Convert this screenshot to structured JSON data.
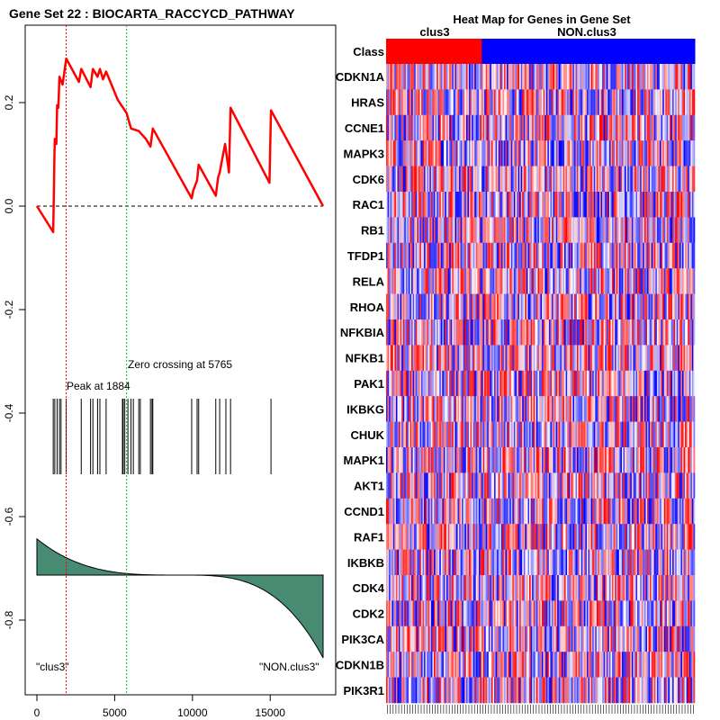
{
  "chart_data": [
    {
      "type": "line",
      "title": "Gene Set  22 : BIOCARTA_RACCYCD_PATHWAY",
      "xlim": [
        0,
        18400
      ],
      "ylim": [
        -0.95,
        0.32
      ],
      "x_ticks": [
        {
          "value": 0,
          "label": "0"
        },
        {
          "value": 5000,
          "label": "5000"
        },
        {
          "value": 10000,
          "label": "10000"
        },
        {
          "value": 15000,
          "label": "15000"
        }
      ],
      "y_ticks": [
        {
          "value": 0.2,
          "label": "0.2"
        },
        {
          "value": 0.0,
          "label": "0.0"
        },
        {
          "value": -0.2,
          "label": "-0.2"
        },
        {
          "value": -0.4,
          "label": "-0.4"
        },
        {
          "value": -0.6,
          "label": "-0.6"
        },
        {
          "value": -0.8,
          "label": "-0.8"
        }
      ],
      "series": [
        {
          "name": "running enrichment score",
          "color": "#ff0000",
          "points": [
            [
              0,
              0.0
            ],
            [
              1050,
              -0.05
            ],
            [
              1100,
              0.04
            ],
            [
              1120,
              0.09
            ],
            [
              1150,
              0.13
            ],
            [
              1250,
              0.12
            ],
            [
              1300,
              0.195
            ],
            [
              1380,
              0.19
            ],
            [
              1450,
              0.25
            ],
            [
              1650,
              0.235
            ],
            [
              1884,
              0.285
            ],
            [
              2700,
              0.24
            ],
            [
              2850,
              0.265
            ],
            [
              3450,
              0.23
            ],
            [
              3600,
              0.265
            ],
            [
              3900,
              0.25
            ],
            [
              4050,
              0.265
            ],
            [
              4250,
              0.245
            ],
            [
              4450,
              0.26
            ],
            [
              5200,
              0.205
            ],
            [
              5765,
              0.18
            ],
            [
              6050,
              0.15
            ],
            [
              6550,
              0.145
            ],
            [
              7000,
              0.13
            ],
            [
              7300,
              0.115
            ],
            [
              7450,
              0.15
            ],
            [
              9950,
              0.015
            ],
            [
              10050,
              0.03
            ],
            [
              10300,
              0.05
            ],
            [
              10400,
              0.08
            ],
            [
              11500,
              0.02
            ],
            [
              11650,
              0.055
            ],
            [
              11750,
              0.065
            ],
            [
              12100,
              0.12
            ],
            [
              12350,
              0.065
            ],
            [
              12450,
              0.19
            ],
            [
              14950,
              0.045
            ],
            [
              15050,
              0.185
            ],
            [
              18400,
              0.0
            ]
          ]
        }
      ],
      "hits": [
        1050,
        1150,
        1300,
        1450,
        1550,
        1884,
        2850,
        3450,
        3600,
        3900,
        4050,
        4450,
        5500,
        5550,
        5650,
        5850,
        6050,
        6200,
        6550,
        6650,
        7300,
        7400,
        7450,
        9950,
        10300,
        10400,
        11500,
        11750,
        12150,
        12450,
        15050
      ],
      "metric": {
        "x_start": 0,
        "x_end": 18400,
        "start": 0.07,
        "end": -0.16
      },
      "baseline": -0.713,
      "peak": {
        "x": 1884,
        "label": "Peak at 1884"
      },
      "zero_crossing": {
        "x": 5765,
        "label": "Zero crossing at 5765"
      },
      "left_label": "\"clus3\"",
      "right_label": "\"NON.clus3\""
    },
    {
      "type": "heatmap",
      "title": "Heat Map for Genes in Gene Set",
      "class_row_label": "Class",
      "groups": [
        {
          "name": "clus3",
          "color": "#ff0000",
          "fraction": 0.31
        },
        {
          "name": "NON.clus3",
          "color": "#0000ff",
          "fraction": 0.69
        }
      ],
      "genes": [
        "CDKN1A",
        "HRAS",
        "CCNE1",
        "MAPK3",
        "CDK6",
        "RAC1",
        "RB1",
        "TFDP1",
        "RELA",
        "RHOA",
        "NFKBIA",
        "NFKB1",
        "PAK1",
        "IKBKG",
        "CHUK",
        "MAPK1",
        "AKT1",
        "CCND1",
        "RAF1",
        "IKBKB",
        "CDK4",
        "CDK2",
        "PIK3CA",
        "CDKN1B",
        "PIK3R1"
      ],
      "columns": 220
    }
  ]
}
